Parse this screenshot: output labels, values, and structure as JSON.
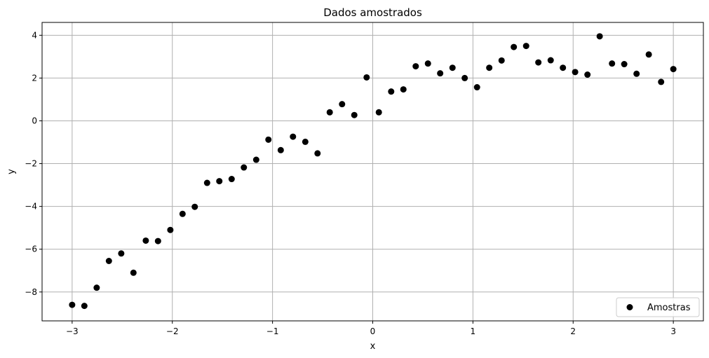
{
  "chart_data": {
    "type": "scatter",
    "title": "Dados amostrados",
    "xlabel": "x",
    "ylabel": "y",
    "xlim": [
      -3.3,
      3.3
    ],
    "ylim": [
      -9.35,
      4.6
    ],
    "xticks": [
      -3,
      -2,
      -1,
      0,
      1,
      2,
      3
    ],
    "yticks": [
      -8,
      -6,
      -4,
      -2,
      0,
      2,
      4
    ],
    "xtick_labels": [
      "−3",
      "−2",
      "−1",
      "0",
      "1",
      "2",
      "3"
    ],
    "ytick_labels": [
      "−8",
      "−6",
      "−4",
      "−2",
      "0",
      "2",
      "4"
    ],
    "grid": true,
    "legend_position": "lower-right",
    "series": [
      {
        "name": "Amostras",
        "color": "#000000",
        "x": [
          -3.0,
          -2.878,
          -2.755,
          -2.633,
          -2.51,
          -2.388,
          -2.265,
          -2.143,
          -2.02,
          -1.898,
          -1.776,
          -1.653,
          -1.531,
          -1.408,
          -1.286,
          -1.163,
          -1.041,
          -0.918,
          -0.796,
          -0.673,
          -0.551,
          -0.429,
          -0.306,
          -0.184,
          -0.061,
          0.061,
          0.184,
          0.306,
          0.429,
          0.551,
          0.673,
          0.796,
          0.918,
          1.041,
          1.163,
          1.286,
          1.408,
          1.531,
          1.653,
          1.776,
          1.898,
          2.02,
          2.143,
          2.265,
          2.388,
          2.51,
          2.633,
          2.755,
          2.878,
          3.0
        ],
        "y": [
          -8.6,
          -8.65,
          -7.8,
          -6.55,
          -6.2,
          -7.1,
          -5.6,
          -5.62,
          -5.1,
          -4.35,
          -4.02,
          -2.9,
          -2.82,
          -2.72,
          -2.18,
          -1.82,
          -0.88,
          -1.37,
          -0.74,
          -0.98,
          -1.52,
          0.4,
          0.78,
          0.27,
          2.03,
          0.4,
          1.37,
          1.47,
          2.55,
          2.68,
          2.22,
          2.48,
          2.0,
          1.57,
          2.48,
          2.82,
          3.45,
          3.5,
          2.73,
          2.83,
          2.48,
          2.28,
          2.16,
          3.95,
          2.68,
          2.65,
          2.2,
          3.1,
          1.82,
          2.42
        ]
      }
    ]
  }
}
